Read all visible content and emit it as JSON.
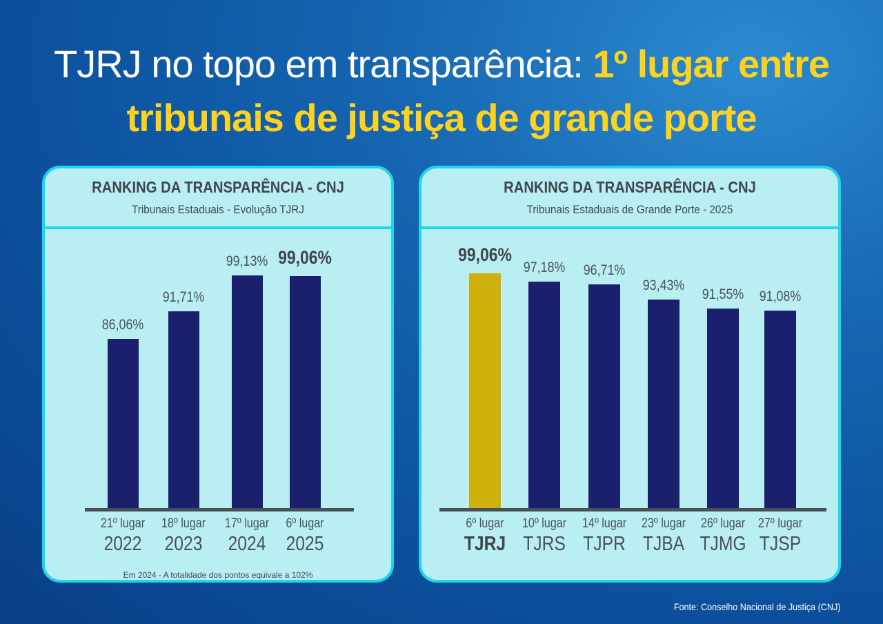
{
  "headline": {
    "line1_plain": "TJRJ no topo em transparência: ",
    "line1_highlight": "1º lugar entre",
    "line2_highlight": "tribunais de justiça de grande porte"
  },
  "colors": {
    "bar": "#1a1f6e",
    "highlight_bar": "#cfb00c",
    "headline_highlight": "#ffd21f",
    "panel": "#b9eff3",
    "panel_border": "#1dd6ea"
  },
  "chart_data": [
    {
      "type": "bar",
      "title": "RANKING DA TRANSPARÊNCIA - CNJ",
      "subtitle": "Tribunais Estaduais  - Evolução TJRJ",
      "categories": [
        "2022",
        "2023",
        "2024",
        "2025"
      ],
      "ranks": [
        "21º lugar",
        "18º lugar",
        "17º lugar",
        "6º lugar"
      ],
      "values": [
        86.06,
        91.71,
        99.13,
        99.06
      ],
      "labels": [
        "86,06%",
        "91,71%",
        "99,13%",
        "99,06%"
      ],
      "highlight_index": 3,
      "note": "Em 2024 - A totalidade dos pontos equivale a 102%"
    },
    {
      "type": "bar",
      "title": "RANKING DA TRANSPARÊNCIA - CNJ",
      "subtitle": "Tribunais Estaduais de Grande Porte - 2025",
      "categories": [
        "TJRJ",
        "TJRS",
        "TJPR",
        "TJBA",
        "TJMG",
        "TJSP"
      ],
      "ranks": [
        "6º lugar",
        "10º lugar",
        "14º lugar",
        "23º lugar",
        "26º lugar",
        "27º lugar"
      ],
      "values": [
        99.06,
        97.18,
        96.71,
        93.43,
        91.55,
        91.08
      ],
      "labels": [
        "99,06%",
        "97,18%",
        "96,71%",
        "93,43%",
        "91,55%",
        "91,08%"
      ],
      "highlight_index": 0
    }
  ],
  "source": "Fonte: Conselho Nacional de Justiça (CNJ)"
}
